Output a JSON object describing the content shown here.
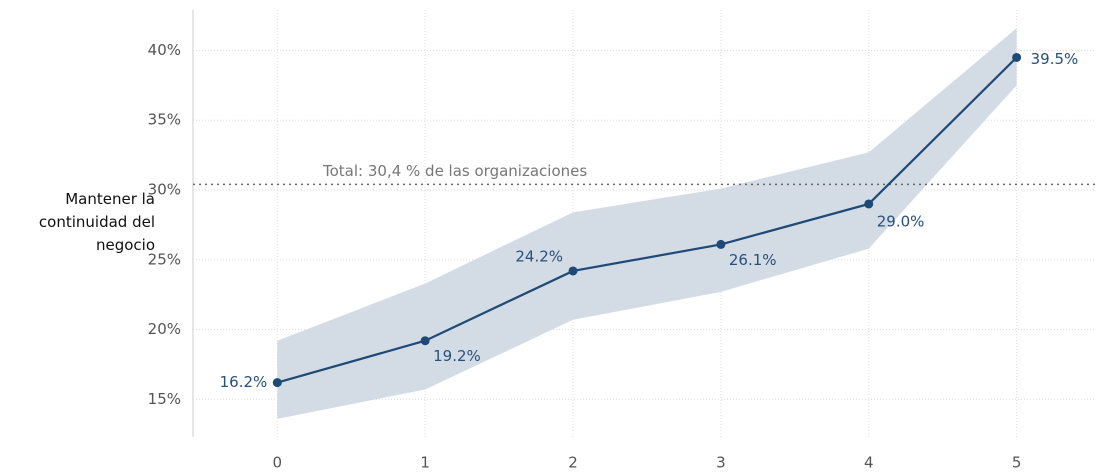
{
  "chart_data": {
    "type": "line",
    "ylabel": "Mantener la continuidad del negocio",
    "x": [
      0,
      1,
      2,
      3,
      4,
      5
    ],
    "series": [
      {
        "color": "#1f4a78",
        "values": [
          16.2,
          19.2,
          24.2,
          26.1,
          29.0,
          39.5
        ],
        "value_labels": [
          "16.2%",
          "19.2%",
          "24.2%",
          "26.1%",
          "29.0%",
          "39.5%"
        ],
        "band_lower": [
          13.6,
          15.7,
          20.7,
          22.7,
          25.8,
          37.5
        ],
        "band_upper": [
          19.2,
          23.3,
          28.4,
          30.1,
          32.7,
          41.6
        ],
        "band_color": "#d3dce4"
      }
    ],
    "reference_line": {
      "value": 30.4,
      "label": "Total: 30,4 % de las organizaciones"
    },
    "xlim": [
      -0.57,
      5.53
    ],
    "ylim": [
      12.3,
      42.9
    ],
    "xticks": [
      0,
      1,
      2,
      3,
      4,
      5
    ],
    "yticks": [
      {
        "value": 15,
        "label": "15%"
      },
      {
        "value": 20,
        "label": "20%"
      },
      {
        "value": 25,
        "label": "25%"
      },
      {
        "value": 30,
        "label": "30%"
      },
      {
        "value": 35,
        "label": "35%"
      },
      {
        "value": 40,
        "label": "40%"
      }
    ],
    "grid": true
  }
}
